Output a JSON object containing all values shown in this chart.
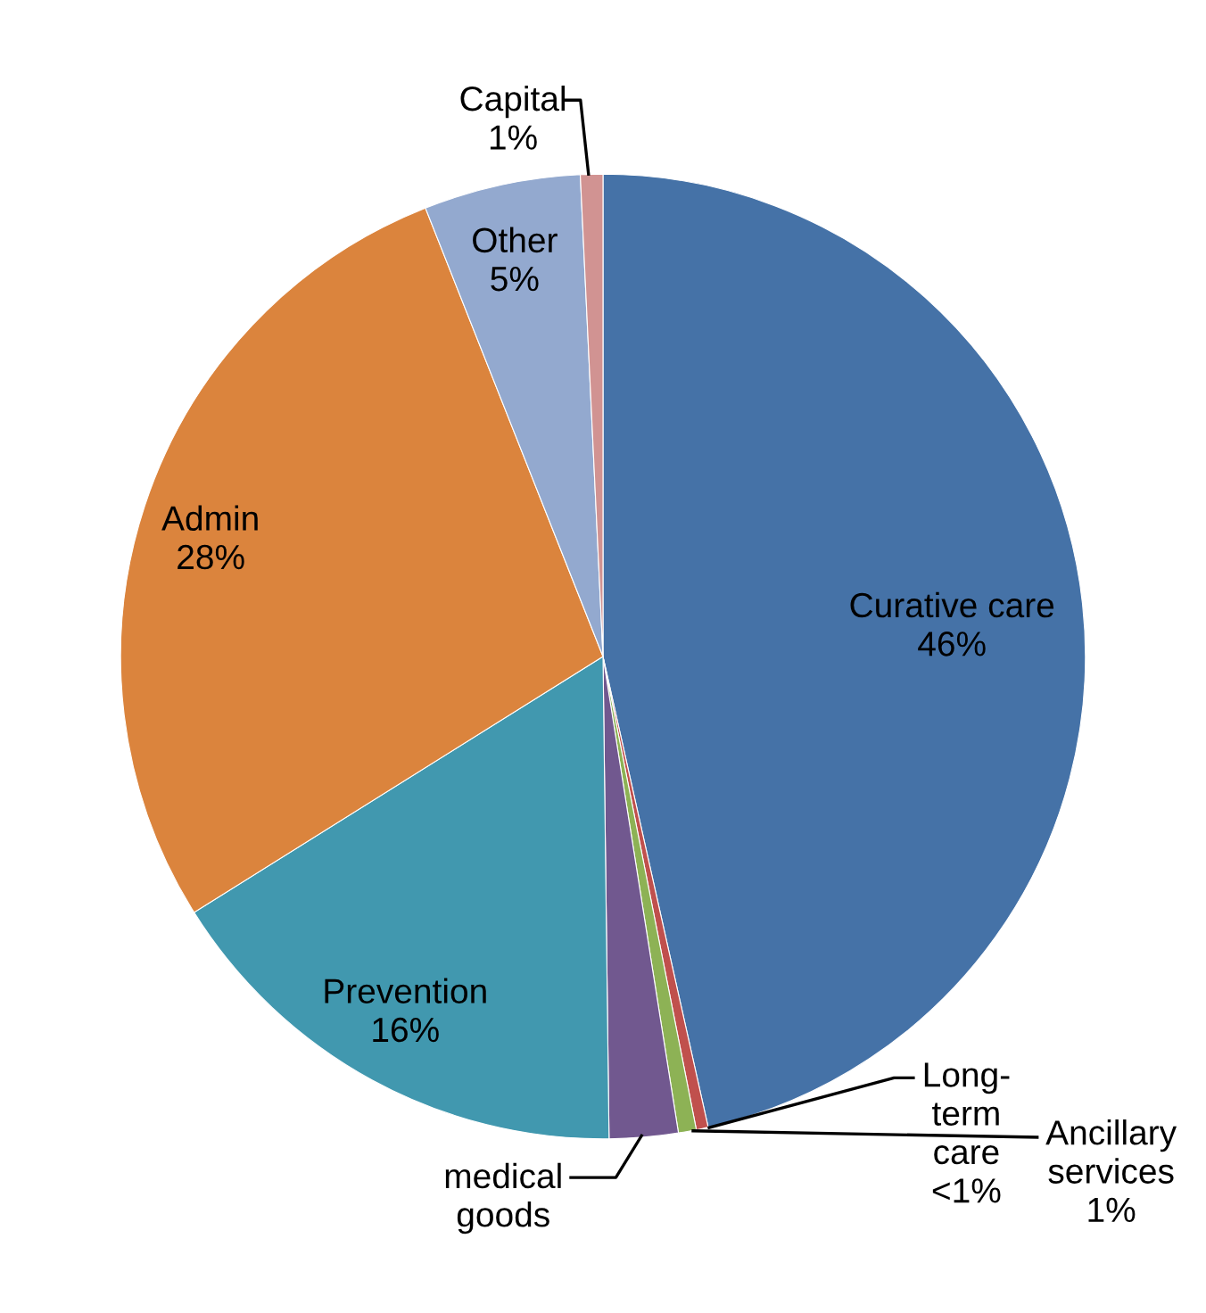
{
  "chart_data": {
    "type": "pie",
    "categories": [
      "Curative care",
      "Long-term care",
      "Ancillary services",
      "medical goods",
      "Prevention",
      "Admin",
      "Other",
      "Capital"
    ],
    "values": [
      46.5,
      0.4,
      0.6,
      2.3,
      16.3,
      27.9,
      5.25,
      0.75
    ],
    "value_labels": [
      "46%",
      "<1%",
      "1%",
      null,
      "16%",
      "28%",
      "5%",
      "1%"
    ],
    "colors": [
      "#4572a7",
      "#c0504d",
      "#8db255",
      "#71588f",
      "#4198af",
      "#db843d",
      "#93a9cf",
      "#d19392"
    ]
  }
}
